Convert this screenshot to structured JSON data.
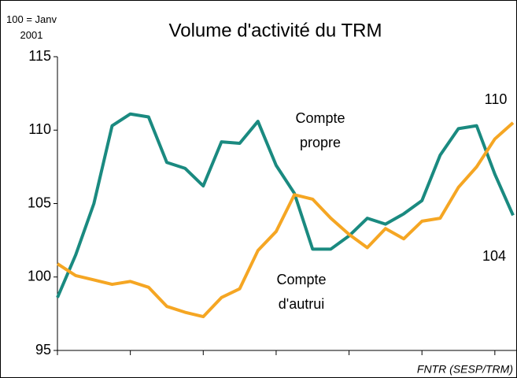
{
  "chart_data": {
    "type": "line",
    "title": "Volume d'activité du TRM",
    "y_unit_note": "100 = Janv 2001",
    "source": "FNTR (SESP/TRM)",
    "categories": [
      null,
      null,
      null,
      null,
      null,
      null,
      null,
      null,
      null,
      null,
      null,
      null,
      null,
      null,
      null,
      null,
      null,
      null,
      null,
      null,
      null,
      null,
      null,
      null,
      null,
      null
    ],
    "series": [
      {
        "name": "Compte propre",
        "color": "#1a8a80",
        "values": [
          98.6,
          101.5,
          105,
          110.3,
          111.1,
          110.9,
          107.8,
          107.4,
          106.2,
          109.2,
          109.1,
          110.6,
          107.6,
          105.7,
          101.9,
          101.9,
          102.8,
          104,
          103.6,
          104.3,
          105.2,
          108.3,
          110.1,
          110.3,
          107,
          104.2
        ]
      },
      {
        "name": "Compte d'autrui",
        "color": "#f5a623",
        "values": [
          100.9,
          100.1,
          99.8,
          99.5,
          99.7,
          99.3,
          98,
          97.6,
          97.3,
          98.6,
          99.2,
          101.8,
          103.1,
          105.6,
          105.3,
          104,
          102.9,
          102,
          103.3,
          102.6,
          103.8,
          104,
          106.1,
          107.5,
          109.4,
          110.5
        ]
      }
    ],
    "annotations": [
      "110",
      "104"
    ],
    "ylim": [
      95,
      115
    ],
    "yticks": [
      95,
      100,
      105,
      110,
      115
    ],
    "grid": false
  }
}
